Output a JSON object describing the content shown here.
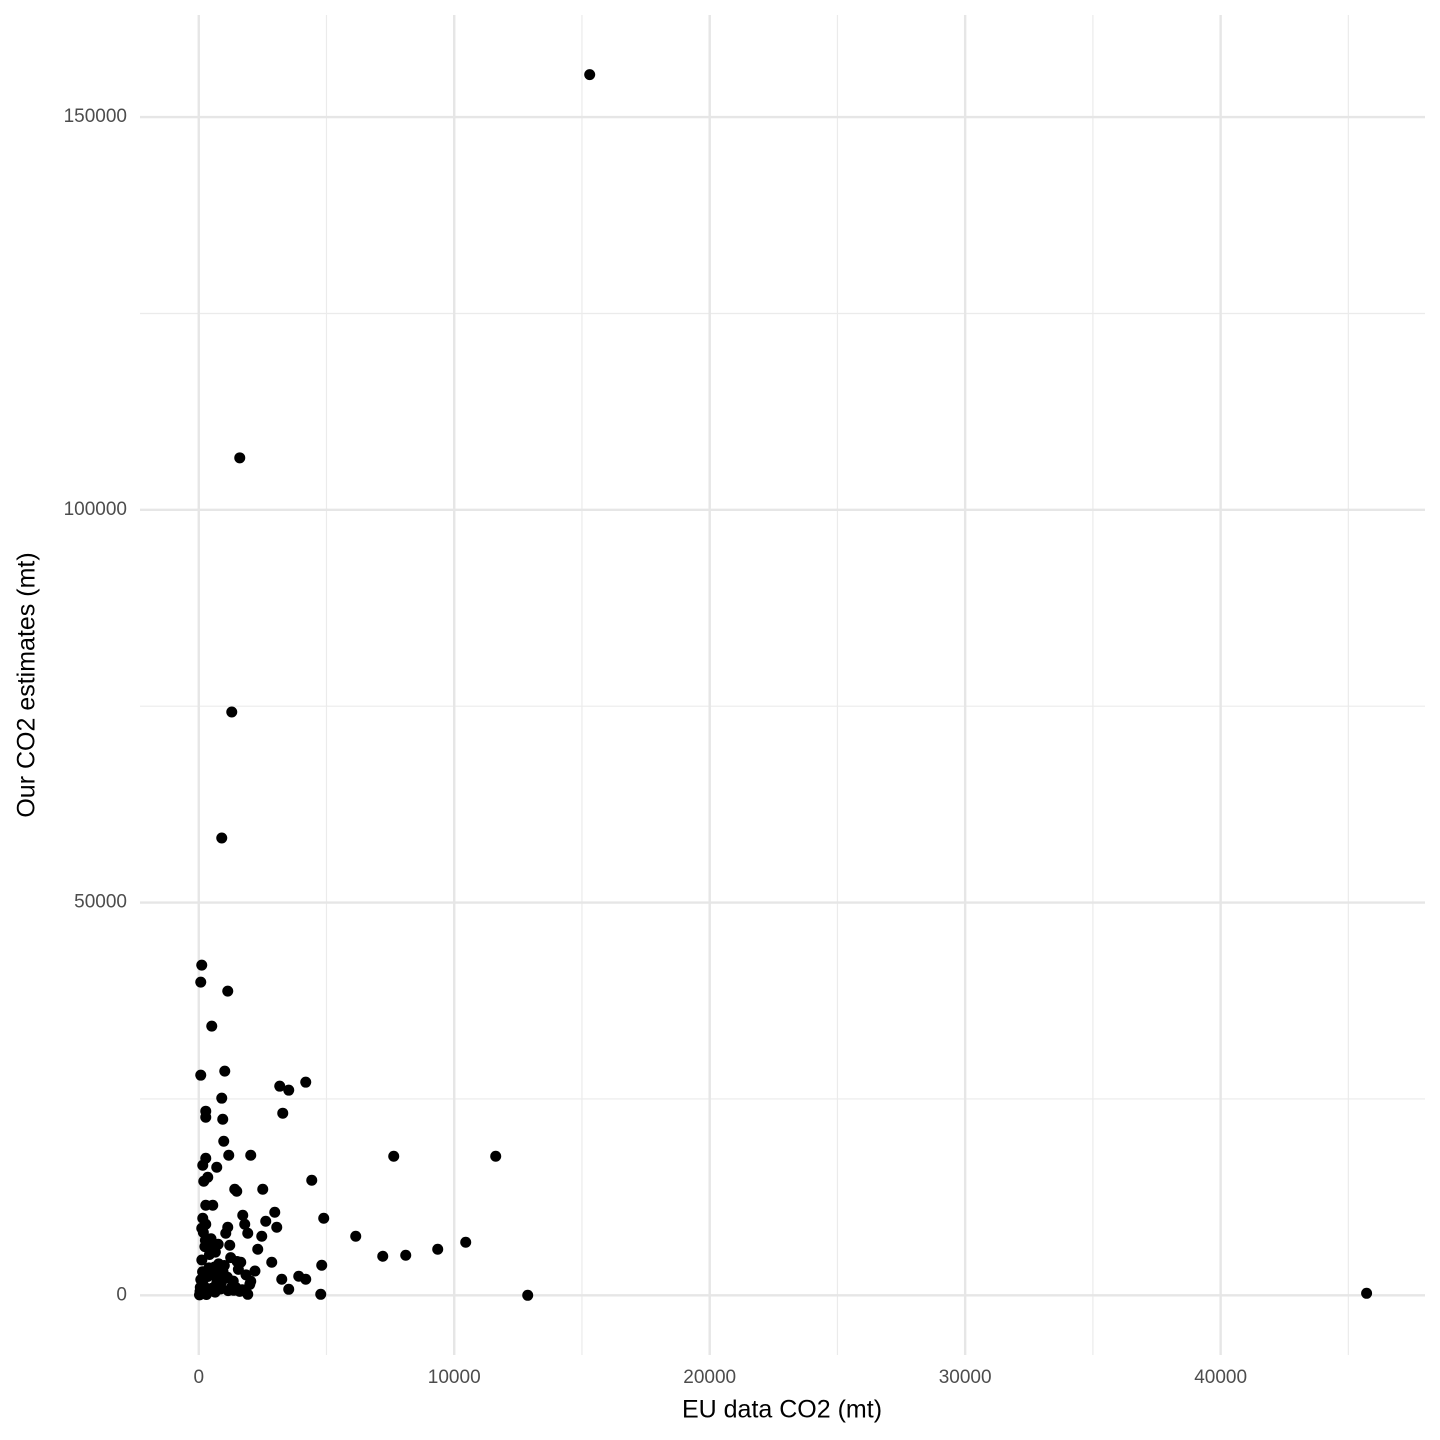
{
  "chart_data": {
    "type": "scatter",
    "x_label": "EU data CO2 (mt)",
    "y_label": "Our CO2 estimates (mt)",
    "xlim": [
      -2300,
      48000
    ],
    "ylim": [
      -7600,
      163000
    ],
    "xticks": [
      0,
      10000,
      20000,
      30000,
      40000
    ],
    "yticks": [
      0,
      50000,
      100000,
      150000
    ],
    "x_minor_ticks": [
      5000,
      15000,
      25000,
      35000,
      45000
    ],
    "y_minor_ticks": [
      25000,
      75000,
      125000
    ],
    "grid": true,
    "color": "#000000",
    "x": [
      15303,
      1605,
      1292,
      900,
      117,
      78,
      1135,
      509,
      78,
      1018,
      3170,
      3522,
      4188,
      3288,
      900,
      274,
      274,
      939,
      978,
      2035,
      1174,
      7632,
      11624,
      274,
      157,
      704,
      352,
      4423,
      196,
      1409,
      1487,
      2505,
      274,
      548,
      2975,
      1722,
      4892,
      157,
      2622,
      274,
      1800,
      1135,
      3053,
      117,
      1918,
      6145,
      1057,
      2466,
      10450,
      1213,
      9354,
      2309,
      8102,
      7202,
      2857,
      4814,
      1644,
      3914,
      4188,
      3249,
      2035,
      3522,
      4775,
      12877,
      45714,
      1918,
      1370,
      50,
      80,
      120,
      200,
      260,
      330,
      400,
      450,
      520,
      600,
      650,
      700,
      780,
      850,
      950,
      1050,
      1150,
      1250,
      1350,
      1450,
      1550,
      1700,
      1850,
      2000,
      100,
      180,
      300,
      420,
      560,
      640,
      760,
      880,
      1000,
      1120,
      1300,
      1500,
      30,
      60,
      150,
      240,
      350,
      480,
      620,
      820,
      1600,
      2200
    ],
    "y": [
      155414,
      106624,
      74268,
      58217,
      42038,
      39873,
      38726,
      34268,
      28025,
      28535,
      26624,
      26115,
      27134,
      23185,
      25096,
      23439,
      22675,
      22420,
      19618,
      17834,
      17834,
      17707,
      17707,
      17452,
      16561,
      16306,
      15032,
      14650,
      14522,
      13503,
      13248,
      13503,
      11465,
      11465,
      10573,
      10191,
      9809,
      9809,
      9427,
      9045,
      9045,
      8662,
      8662,
      8535,
      7898,
      7516,
      7898,
      7516,
      6752,
      6369,
      5860,
      5860,
      5096,
      4968,
      4204,
      3822,
      4204,
      2420,
      2038,
      2038,
      1783,
      764,
      127,
      0,
      255,
      127,
      637,
      500,
      2000,
      4500,
      1200,
      7000,
      300,
      3500,
      6000,
      900,
      2500,
      5500,
      1500,
      4000,
      800,
      3000,
      2200,
      600,
      4800,
      1800,
      1000,
      3300,
      700,
      2600,
      1400,
      200,
      8000,
      100,
      5200,
      2800,
      400,
      6500,
      1600,
      3800,
      2300,
      1100,
      4300,
      50,
      1000,
      3000,
      6200,
      2400,
      7200,
      3600,
      1900,
      500,
      3100
    ]
  }
}
